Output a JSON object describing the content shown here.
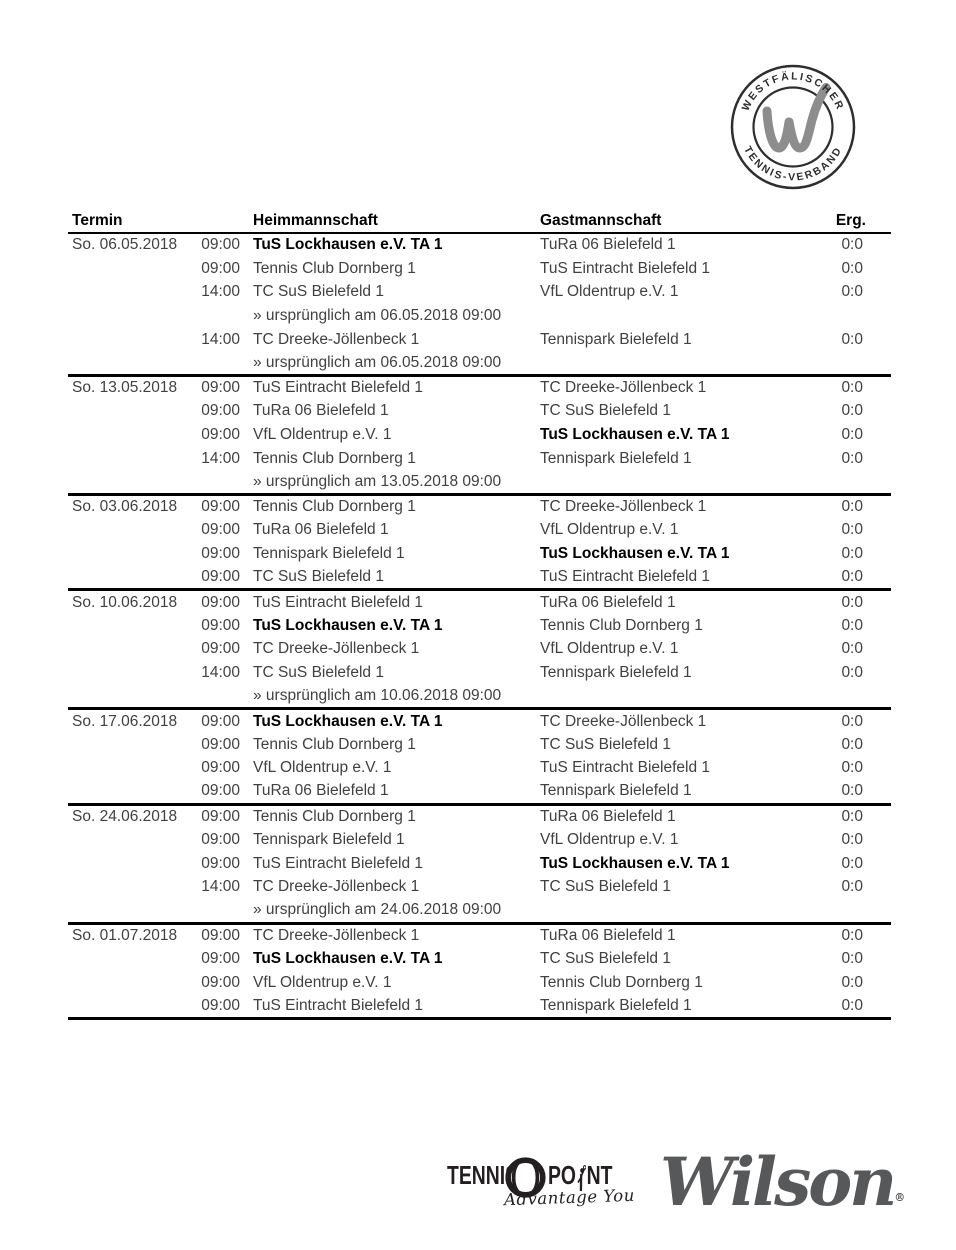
{
  "badge": {
    "top_text": "WESTFÄLISCHER",
    "bottom_text": "TENNIS-VERBAND",
    "ring_color": "#2e2e2e",
    "w_color": "#8d8d8d"
  },
  "table": {
    "headers": {
      "termin": "Termin",
      "heim": "Heimmannschaft",
      "gast": "Gastmannschaft",
      "erg": "Erg."
    },
    "blocks": [
      {
        "date": "So. 06.05.2018",
        "matches": [
          {
            "time": "09:00",
            "home": "TuS Lockhausen e.V. TA 1",
            "home_bold": true,
            "guest": "TuRa 06 Bielefeld 1",
            "result": "0:0"
          },
          {
            "time": "09:00",
            "home": "Tennis Club Dornberg 1",
            "guest": "TuS Eintracht Bielefeld 1",
            "result": "0:0"
          },
          {
            "time": "14:00",
            "home": "TC SuS Bielefeld 1",
            "guest": "VfL Oldentrup e.V. 1",
            "result": "0:0",
            "note": "» ursprünglich am 06.05.2018 09:00"
          },
          {
            "time": "14:00",
            "home": "TC Dreeke-Jöllenbeck 1",
            "guest": "Tennispark Bielefeld 1",
            "result": "0:0",
            "note": "» ursprünglich am 06.05.2018 09:00"
          }
        ]
      },
      {
        "date": "So. 13.05.2018",
        "matches": [
          {
            "time": "09:00",
            "home": "TuS Eintracht Bielefeld 1",
            "guest": "TC Dreeke-Jöllenbeck 1",
            "result": "0:0"
          },
          {
            "time": "09:00",
            "home": "TuRa 06 Bielefeld 1",
            "guest": "TC SuS Bielefeld 1",
            "result": "0:0"
          },
          {
            "time": "09:00",
            "home": "VfL Oldentrup e.V. 1",
            "guest": "TuS Lockhausen e.V. TA 1",
            "guest_bold": true,
            "result": "0:0"
          },
          {
            "time": "14:00",
            "home": "Tennis Club Dornberg 1",
            "guest": "Tennispark Bielefeld 1",
            "result": "0:0",
            "note": "» ursprünglich am 13.05.2018 09:00"
          }
        ]
      },
      {
        "date": "So. 03.06.2018",
        "matches": [
          {
            "time": "09:00",
            "home": "Tennis Club Dornberg 1",
            "guest": "TC Dreeke-Jöllenbeck 1",
            "result": "0:0"
          },
          {
            "time": "09:00",
            "home": "TuRa 06 Bielefeld 1",
            "guest": "VfL Oldentrup e.V. 1",
            "result": "0:0"
          },
          {
            "time": "09:00",
            "home": "Tennispark Bielefeld 1",
            "guest": "TuS Lockhausen e.V. TA 1",
            "guest_bold": true,
            "result": "0:0"
          },
          {
            "time": "09:00",
            "home": "TC SuS Bielefeld 1",
            "guest": "TuS Eintracht Bielefeld 1",
            "result": "0:0"
          }
        ]
      },
      {
        "date": "So. 10.06.2018",
        "matches": [
          {
            "time": "09:00",
            "home": "TuS Eintracht Bielefeld 1",
            "guest": "TuRa 06 Bielefeld 1",
            "result": "0:0"
          },
          {
            "time": "09:00",
            "home": "TuS Lockhausen e.V. TA 1",
            "home_bold": true,
            "guest": "Tennis Club Dornberg 1",
            "result": "0:0"
          },
          {
            "time": "09:00",
            "home": "TC Dreeke-Jöllenbeck 1",
            "guest": "VfL Oldentrup e.V. 1",
            "result": "0:0"
          },
          {
            "time": "14:00",
            "home": "TC SuS Bielefeld 1",
            "guest": "Tennispark Bielefeld 1",
            "result": "0:0",
            "note": "» ursprünglich am 10.06.2018 09:00"
          }
        ]
      },
      {
        "date": "So. 17.06.2018",
        "matches": [
          {
            "time": "09:00",
            "home": "TuS Lockhausen e.V. TA 1",
            "home_bold": true,
            "guest": "TC Dreeke-Jöllenbeck 1",
            "result": "0:0"
          },
          {
            "time": "09:00",
            "home": "Tennis Club Dornberg 1",
            "guest": "TC SuS Bielefeld 1",
            "result": "0:0"
          },
          {
            "time": "09:00",
            "home": "VfL Oldentrup e.V. 1",
            "guest": "TuS Eintracht Bielefeld 1",
            "result": "0:0"
          },
          {
            "time": "09:00",
            "home": "TuRa 06 Bielefeld 1",
            "guest": "Tennispark Bielefeld 1",
            "result": "0:0"
          }
        ]
      },
      {
        "date": "So. 24.06.2018",
        "matches": [
          {
            "time": "09:00",
            "home": "Tennis Club Dornberg 1",
            "guest": "TuRa 06 Bielefeld 1",
            "result": "0:0"
          },
          {
            "time": "09:00",
            "home": "Tennispark Bielefeld 1",
            "guest": "VfL Oldentrup e.V. 1",
            "result": "0:0"
          },
          {
            "time": "09:00",
            "home": "TuS Eintracht Bielefeld 1",
            "guest": "TuS Lockhausen e.V. TA 1",
            "guest_bold": true,
            "result": "0:0"
          },
          {
            "time": "14:00",
            "home": "TC Dreeke-Jöllenbeck 1",
            "guest": "TC SuS Bielefeld 1",
            "result": "0:0",
            "note": "» ursprünglich am 24.06.2018 09:00"
          }
        ]
      },
      {
        "date": "So. 01.07.2018",
        "matches": [
          {
            "time": "09:00",
            "home": "TC Dreeke-Jöllenbeck 1",
            "guest": "TuRa 06 Bielefeld 1",
            "result": "0:0"
          },
          {
            "time": "09:00",
            "home": "TuS Lockhausen e.V. TA 1",
            "home_bold": true,
            "guest": "TC SuS Bielefeld 1",
            "result": "0:0"
          },
          {
            "time": "09:00",
            "home": "VfL Oldentrup e.V. 1",
            "guest": "Tennis Club Dornberg 1",
            "result": "0:0"
          },
          {
            "time": "09:00",
            "home": "TuS Eintracht Bielefeld 1",
            "guest": "Tennispark Bielefeld 1",
            "result": "0:0"
          }
        ]
      }
    ]
  },
  "sponsors": {
    "tennis_point": {
      "word1": "TENNIS",
      "word2_a": "PO",
      "word2_b": "NT",
      "tagline": "Advantage You",
      "color": "#231f20"
    },
    "wilson": {
      "text": "Wilson",
      "registered": "®",
      "color": "#57585a"
    }
  }
}
